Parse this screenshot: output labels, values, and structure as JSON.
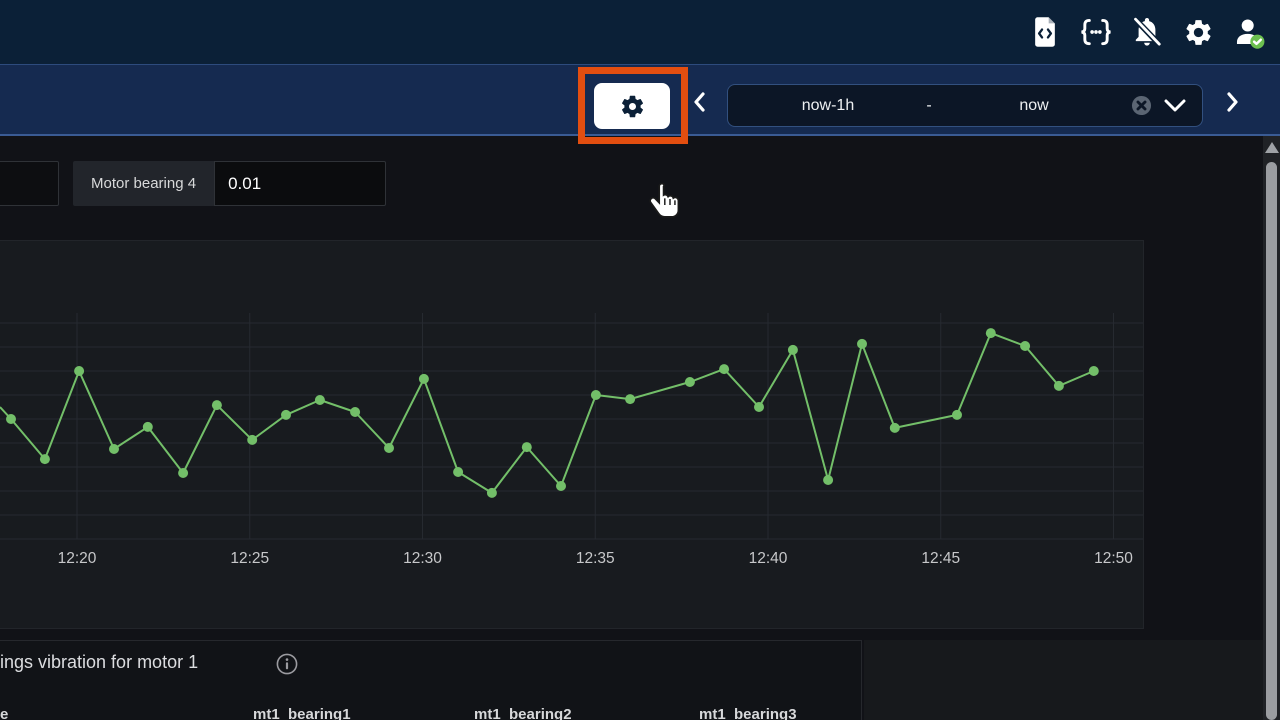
{
  "topbar": {
    "icons": [
      {
        "name": "code-file",
        "glyph": "file-code-icon"
      },
      {
        "name": "json-model",
        "glyph": "braces-icon"
      },
      {
        "name": "notifications-off",
        "glyph": "bell-slash-icon"
      },
      {
        "name": "settings",
        "glyph": "gear-icon"
      },
      {
        "name": "account",
        "glyph": "user-icon",
        "badge": "check",
        "badge_color": "#6cc04f"
      }
    ]
  },
  "toolbar": {
    "settings_button": {
      "icon": "gear",
      "highlighted": true,
      "highlight_color": "#e34e10"
    },
    "time_picker": {
      "from": "now-1h",
      "separator": "-",
      "to": "now",
      "clear_icon": "circle-x",
      "dropdown_icon": "chevron-down"
    },
    "collapse_icon": "chevron-left",
    "expand_icon": "chevron-right"
  },
  "variables_row": {
    "field_label": "Motor bearing 4",
    "field_value": "0.01"
  },
  "chart_data": {
    "type": "line",
    "title": "",
    "x_axis": "time of day",
    "x_ticks": [
      {
        "minute": 20,
        "label": "12:20"
      },
      {
        "minute": 25,
        "label": "12:25"
      },
      {
        "minute": 30,
        "label": "12:30"
      },
      {
        "minute": 35,
        "label": "12:35"
      },
      {
        "minute": 40,
        "label": "12:40"
      },
      {
        "minute": 45,
        "label": "12:45"
      },
      {
        "minute": 50,
        "label": "12:50"
      }
    ],
    "y_axis_visible": false,
    "y_unit": "relative grid units (y-axis labels cropped out of view)",
    "ylim": [
      0,
      12.4
    ],
    "grid": true,
    "legend": "none",
    "first_point_is_edge": true,
    "series": [
      {
        "name": "vibration",
        "color": "#73bf69",
        "points": [
          [
            17.77,
            5.5
          ],
          [
            18.09,
            5.0
          ],
          [
            19.07,
            3.33
          ],
          [
            20.06,
            7.0
          ],
          [
            21.07,
            3.75
          ],
          [
            22.05,
            4.67
          ],
          [
            23.07,
            2.75
          ],
          [
            24.05,
            5.58
          ],
          [
            25.07,
            4.13
          ],
          [
            26.05,
            5.17
          ],
          [
            27.03,
            5.79
          ],
          [
            28.05,
            5.29
          ],
          [
            29.03,
            3.79
          ],
          [
            30.04,
            6.67
          ],
          [
            31.03,
            2.79
          ],
          [
            32.01,
            1.92
          ],
          [
            33.02,
            3.83
          ],
          [
            34.01,
            2.21
          ],
          [
            35.02,
            6.0
          ],
          [
            36.01,
            5.83
          ],
          [
            37.74,
            6.54
          ],
          [
            38.73,
            7.08
          ],
          [
            39.74,
            5.5
          ],
          [
            40.72,
            7.88
          ],
          [
            41.74,
            2.46
          ],
          [
            42.72,
            8.13
          ],
          [
            43.67,
            4.63
          ],
          [
            45.47,
            5.17
          ],
          [
            46.45,
            8.58
          ],
          [
            47.44,
            8.04
          ],
          [
            48.42,
            6.38
          ],
          [
            49.43,
            7.0
          ]
        ]
      }
    ]
  },
  "table_panel": {
    "title_visible": "ings vibration for motor 1",
    "info_icon": "info-circle",
    "column_headers_visible": [
      "e",
      "mt1_bearing1",
      "mt1_bearing2",
      "mt1_bearing3"
    ]
  },
  "colors": {
    "topbar_bg": "#0b2037",
    "navbar_bg": "#152a50",
    "page_bg": "#111217",
    "panel_bg": "#181b1f",
    "accent_green": "#73bf69",
    "highlight_orange": "#e34e10",
    "badge_green": "#6cc04f"
  }
}
